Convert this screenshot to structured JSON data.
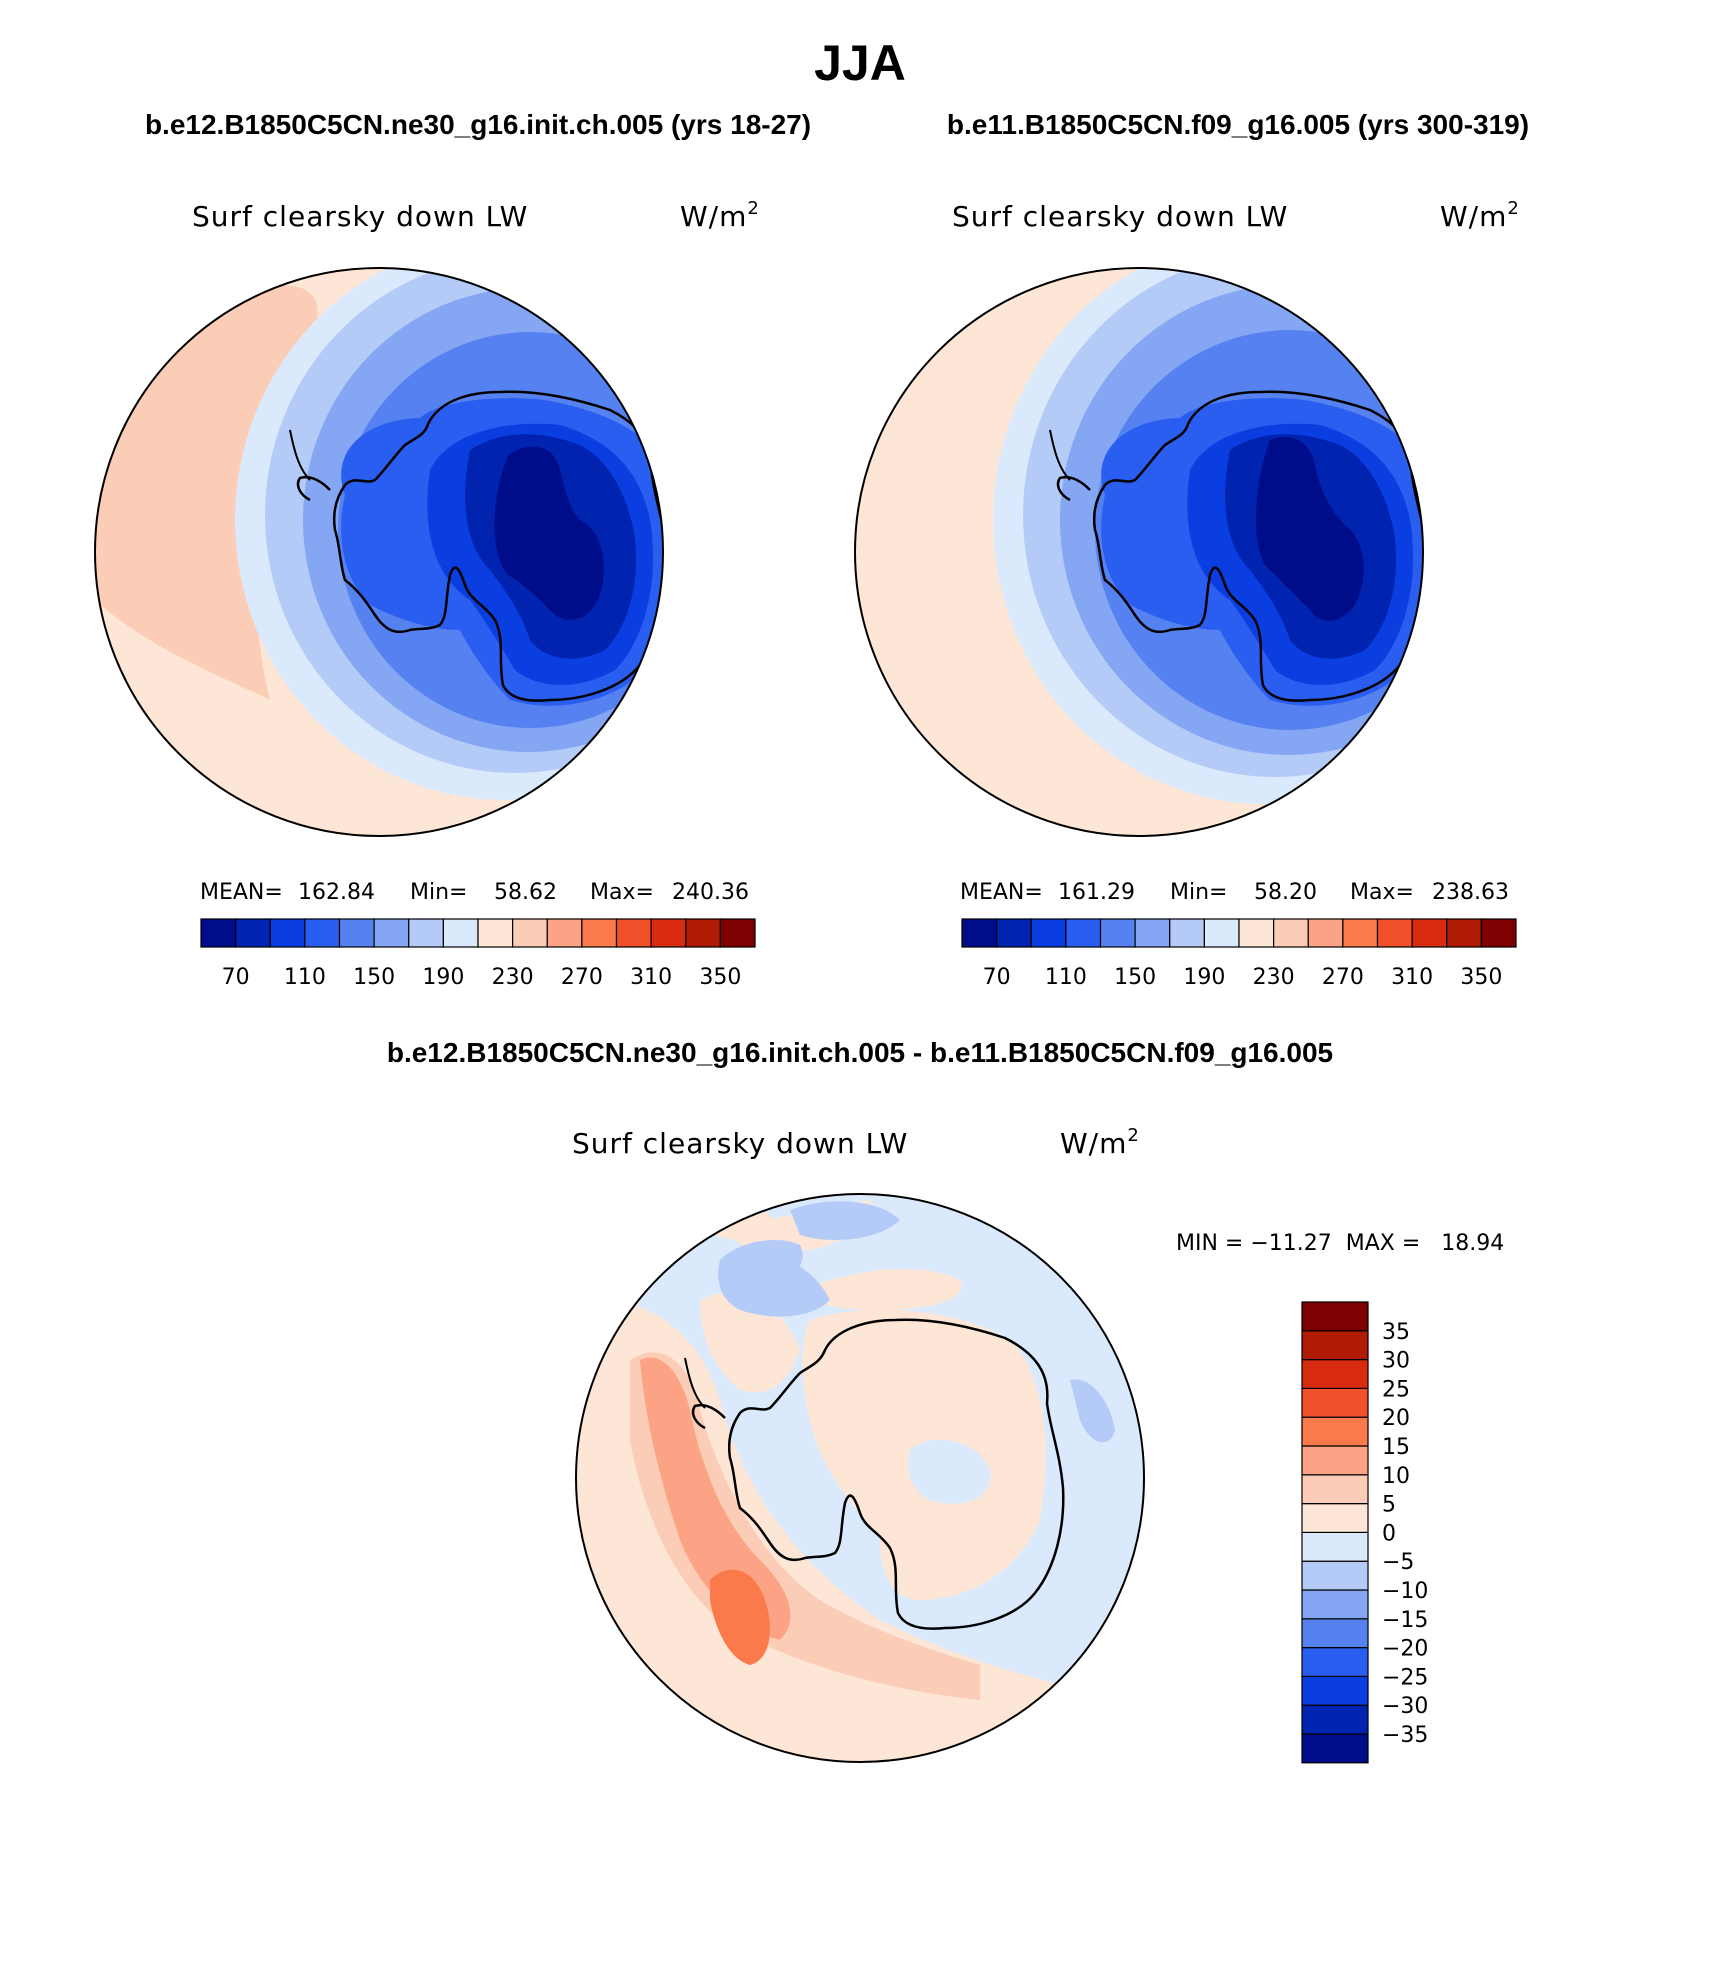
{
  "figure": {
    "season": "JJA",
    "top_left_title": "b.e12.B1850C5CN.ne30_g16.init.ch.005 (yrs 18-27)",
    "top_right_title": "b.e11.B1850C5CN.f09_g16.005 (yrs 300-319)",
    "diff_title": "b.e12.B1850C5CN.ne30_g16.init.ch.005 - b.e11.B1850C5CN.f09_g16.005"
  },
  "chart_data": [
    {
      "type": "heatmap",
      "projection": "south polar stereographic",
      "title": "b.e12.B1850C5CN.ne30_g16.init.ch.005 (yrs 18-27)",
      "variable": "Surf clearsky down LW",
      "units": "W/m",
      "units_exp": "2",
      "stats": {
        "mean_label": "MEAN=",
        "mean": "162.84",
        "min_label": "Min=",
        "min": "58.62",
        "max_label": "Max=",
        "max": "240.36"
      },
      "levels": [
        70,
        90,
        110,
        130,
        150,
        170,
        190,
        210,
        230,
        250,
        270,
        290,
        310,
        330,
        350
      ],
      "tick_labels": [
        "70",
        "110",
        "150",
        "190",
        "230",
        "270",
        "310",
        "350"
      ],
      "palette": [
        "#000d8a",
        "#0023b0",
        "#0a3ee0",
        "#2a5ef0",
        "#5582f0",
        "#85a6f2",
        "#b4cbf7",
        "#daeafc",
        "#fde6d6",
        "#fccdb6",
        "#fca385",
        "#fa7a4c",
        "#f2502a",
        "#d92b10",
        "#b01b06",
        "#7f0000"
      ]
    },
    {
      "type": "heatmap",
      "projection": "south polar stereographic",
      "title": "b.e11.B1850C5CN.f09_g16.005 (yrs 300-319)",
      "variable": "Surf clearsky down LW",
      "units": "W/m",
      "units_exp": "2",
      "stats": {
        "mean_label": "MEAN=",
        "mean": "161.29",
        "min_label": "Min=",
        "min": "58.20",
        "max_label": "Max=",
        "max": "238.63"
      },
      "levels": [
        70,
        90,
        110,
        130,
        150,
        170,
        190,
        210,
        230,
        250,
        270,
        290,
        310,
        330,
        350
      ],
      "tick_labels": [
        "70",
        "110",
        "150",
        "190",
        "230",
        "270",
        "310",
        "350"
      ],
      "palette": [
        "#000d8a",
        "#0023b0",
        "#0a3ee0",
        "#2a5ef0",
        "#5582f0",
        "#85a6f2",
        "#b4cbf7",
        "#daeafc",
        "#fde6d6",
        "#fccdb6",
        "#fca385",
        "#fa7a4c",
        "#f2502a",
        "#d92b10",
        "#b01b06",
        "#7f0000"
      ]
    },
    {
      "type": "heatmap",
      "projection": "south polar stereographic",
      "title": "b.e12.B1850C5CN.ne30_g16.init.ch.005 - b.e11.B1850C5CN.f09_g16.005",
      "variable": "Surf clearsky down LW",
      "units": "W/m",
      "units_exp": "2",
      "stats_text": "MIN = −11.27  MAX =   18.94",
      "levels": [
        -35,
        -30,
        -25,
        -20,
        -15,
        -10,
        -5,
        0,
        5,
        10,
        15,
        20,
        25,
        30,
        35
      ],
      "tick_labels": [
        "−35",
        "−30",
        "−25",
        "−20",
        "−15",
        "−10",
        "−5",
        "0",
        "5",
        "10",
        "15",
        "20",
        "25",
        "30",
        "35"
      ],
      "palette": [
        "#000d8a",
        "#0023b0",
        "#0a3ee0",
        "#2a5ef0",
        "#5582f0",
        "#85a6f2",
        "#b4cbf7",
        "#daeafc",
        "#fde6d6",
        "#fccdb6",
        "#fca385",
        "#fa7a4c",
        "#f2502a",
        "#d92b10",
        "#b01b06",
        "#7f0000"
      ]
    }
  ]
}
